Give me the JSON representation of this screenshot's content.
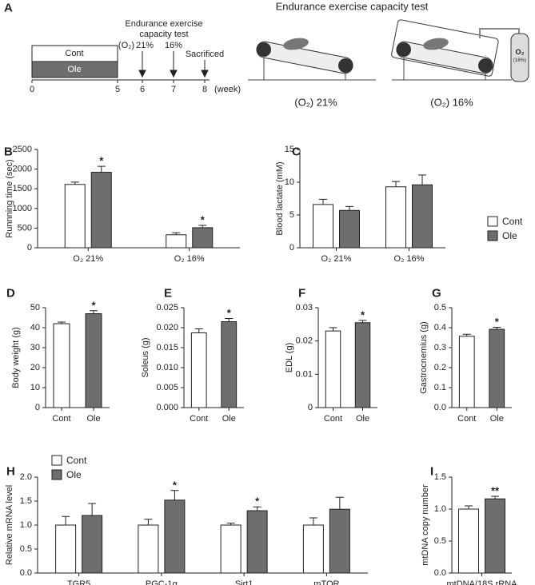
{
  "panel_a": {
    "letter": "A",
    "timeline_title": [
      "Endurance exercise",
      "capacity test"
    ],
    "o2_prefix": "(O₂)",
    "arrow_labels": [
      "21%",
      "16%",
      "Sacrificed"
    ],
    "groups": [
      "Cont",
      "Ole"
    ],
    "ticks": [
      "0",
      "5",
      "6",
      "7",
      "8"
    ],
    "unit": "(week)",
    "illustration_title": "Endurance exercise capacity test",
    "captions": [
      "(O₂) 21%",
      "(O₂) 16%"
    ],
    "tank_label": [
      "O₂",
      "(16%)"
    ]
  },
  "chart_data": [
    {
      "type": "bar",
      "panel": "B",
      "y_label": "Runnning time (sec)",
      "categories": [
        "O₂ 21%",
        "O₂ 16%"
      ],
      "series": [
        {
          "color": "#ffffff",
          "values": [
            1610,
            330
          ],
          "errors": [
            60,
            50
          ]
        },
        {
          "color": "#6e6e6e",
          "values": [
            1920,
            510
          ],
          "errors": [
            150,
            60
          ],
          "significance": [
            "*",
            "*"
          ]
        }
      ],
      "ylim": [
        0,
        2500
      ],
      "yticks": [
        0,
        500,
        1000,
        1500,
        2000,
        2500
      ]
    },
    {
      "type": "bar",
      "panel": "C",
      "y_label": "Blood lactate (mM)",
      "categories": [
        "O₂ 21%",
        "O₂ 16%"
      ],
      "series": [
        {
          "name": "Cont",
          "color": "#ffffff",
          "values": [
            6.6,
            9.3
          ],
          "errors": [
            0.8,
            0.8
          ]
        },
        {
          "name": "Ole",
          "color": "#6e6e6e",
          "values": [
            5.7,
            9.6
          ],
          "errors": [
            0.6,
            1.5
          ]
        }
      ],
      "ylim": [
        0,
        15
      ],
      "yticks": [
        0,
        5,
        10,
        15
      ],
      "legend": "right"
    },
    {
      "type": "bar",
      "panel": "D",
      "y_label": "Body weight (g)",
      "categories": [
        "Cont",
        "Ole"
      ],
      "series": [
        {
          "colors": [
            "#ffffff",
            "#6e6e6e"
          ],
          "values": [
            42,
            47
          ],
          "errors": [
            0.8,
            1.5
          ],
          "significance": [
            null,
            "*"
          ]
        }
      ],
      "ylim": [
        0,
        50
      ],
      "yticks": [
        0,
        10,
        20,
        30,
        40,
        50
      ]
    },
    {
      "type": "bar",
      "panel": "E",
      "y_label": "Soleus (g)",
      "categories": [
        "Cont",
        "Ole"
      ],
      "series": [
        {
          "colors": [
            "#ffffff",
            "#6e6e6e"
          ],
          "values": [
            0.0187,
            0.0215
          ],
          "errors": [
            0.001,
            0.0008
          ],
          "significance": [
            null,
            "*"
          ]
        }
      ],
      "ylim": [
        0,
        0.025
      ],
      "yticks": [
        {
          "value": 0,
          "label": "0.000"
        },
        {
          "value": 0.005,
          "label": "0.005"
        },
        {
          "value": 0.01,
          "label": "0.010"
        },
        {
          "value": 0.015,
          "label": "0.015"
        },
        {
          "value": 0.02,
          "label": "0.020"
        },
        {
          "value": 0.025,
          "label": "0.025"
        }
      ]
    },
    {
      "type": "bar",
      "panel": "F",
      "y_label": "EDL (g)",
      "categories": [
        "Cont",
        "Ole"
      ],
      "series": [
        {
          "colors": [
            "#ffffff",
            "#6e6e6e"
          ],
          "values": [
            0.023,
            0.0255
          ],
          "errors": [
            0.001,
            0.0007
          ],
          "significance": [
            null,
            "*"
          ]
        }
      ],
      "ylim": [
        0,
        0.03
      ],
      "yticks": [
        0,
        0.01,
        0.02,
        0.03
      ]
    },
    {
      "type": "bar",
      "panel": "G",
      "y_label": "Gastrocnemius (g)",
      "categories": [
        "Cont",
        "Ole"
      ],
      "series": [
        {
          "colors": [
            "#ffffff",
            "#6e6e6e"
          ],
          "values": [
            0.357,
            0.392
          ],
          "errors": [
            0.01,
            0.01
          ],
          "significance": [
            null,
            "*"
          ]
        }
      ],
      "ylim": [
        0,
        0.5
      ],
      "yticks": [
        {
          "value": 0,
          "label": "0.0"
        },
        0.1,
        0.2,
        0.3,
        0.4,
        0.5
      ]
    },
    {
      "type": "bar",
      "panel": "H",
      "y_label": "Relative mRNA level",
      "categories": [
        "TGR5",
        "PGC-1α",
        "Sirt1",
        "mTOR"
      ],
      "series": [
        {
          "name": "Cont",
          "color": "#ffffff",
          "values": [
            1.0,
            1.0,
            1.0,
            1.0
          ],
          "errors": [
            0.18,
            0.12,
            0.04,
            0.15
          ]
        },
        {
          "name": "Ole",
          "color": "#6e6e6e",
          "values": [
            1.2,
            1.52,
            1.3,
            1.33
          ],
          "errors": [
            0.25,
            0.2,
            0.08,
            0.25
          ],
          "significance": [
            null,
            "*",
            "*",
            null
          ]
        }
      ],
      "ylim": [
        0,
        2
      ],
      "yticks": [
        {
          "value": 0,
          "label": "0.0"
        },
        0.5,
        {
          "value": 1,
          "label": "1.0"
        },
        1.5,
        {
          "value": 2,
          "label": "2.0"
        }
      ],
      "legend": "top-left"
    },
    {
      "type": "bar",
      "panel": "I",
      "y_label": "mtDNA copy number",
      "categories": [
        "mtDNA/18S rRNA"
      ],
      "series": [
        {
          "color": "#ffffff",
          "values": [
            1.0
          ],
          "errors": [
            0.05
          ]
        },
        {
          "color": "#6e6e6e",
          "values": [
            1.16
          ],
          "errors": [
            0.04
          ],
          "significance": [
            "**"
          ]
        }
      ],
      "ylim": [
        0,
        1.5
      ],
      "yticks": [
        {
          "value": 0,
          "label": "0.0"
        },
        0.5,
        {
          "value": 1,
          "label": "1.0"
        },
        1.5
      ]
    }
  ]
}
